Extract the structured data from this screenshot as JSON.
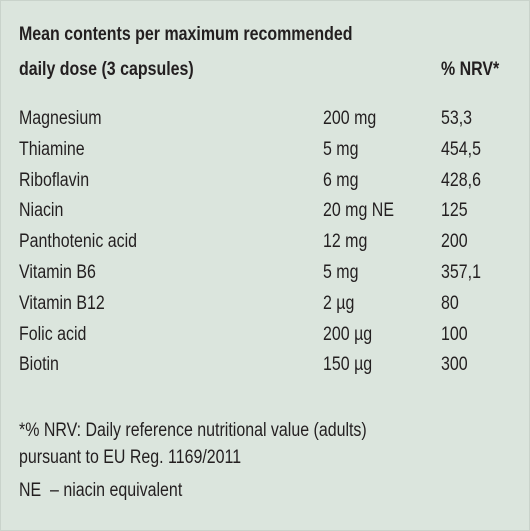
{
  "header": {
    "title_lines": [
      "Mean contents per maximum recommended",
      "daily dose (3 capsules)"
    ],
    "nrv_label": "% NRV*"
  },
  "table": {
    "rows": [
      [
        "Magnesium",
        "200 mg",
        "53,3"
      ],
      [
        "Thiamine",
        "5 mg",
        "454,5"
      ],
      [
        "Riboflavin",
        "6 mg",
        "428,6"
      ],
      [
        "Niacin",
        "20 mg NE",
        "125"
      ],
      [
        "Panthotenic acid",
        "12 mg",
        "200"
      ],
      [
        "Vitamin B6",
        "5 mg",
        "357,1"
      ],
      [
        "Vitamin B12",
        "2 µg",
        "80"
      ],
      [
        "Folic acid",
        "200 µg",
        "100"
      ],
      [
        "Biotin",
        "150 µg",
        "300"
      ]
    ]
  },
  "footnotes": [
    "*% NRV: Daily reference nutritional value (adults)",
    "pursuant to EU Reg. 1169/2011",
    "NE  – niacin equivalent"
  ]
}
